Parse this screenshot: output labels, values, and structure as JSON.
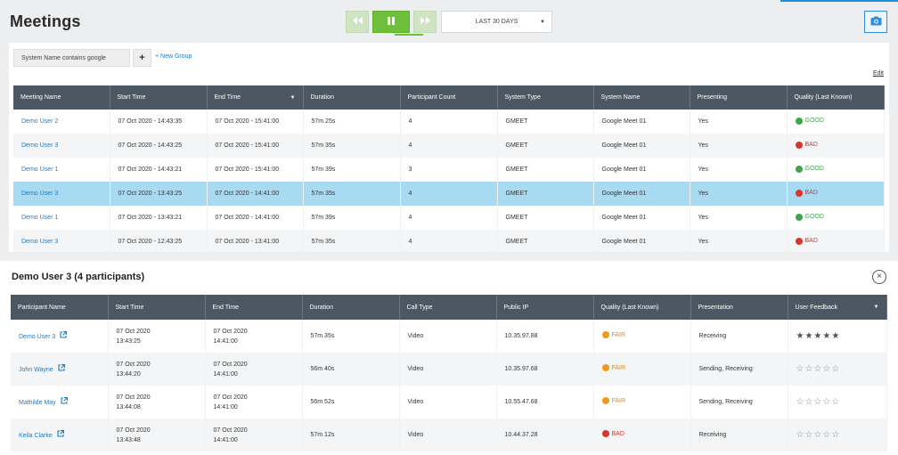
{
  "app": {
    "title": "Meetings"
  },
  "toolbar": {
    "rewind_icon": "rewind-icon",
    "pause_icon": "pause-icon",
    "forward_icon": "fast-forward-icon",
    "range_label": "LAST 30 DAYS",
    "camera_icon": "camera-icon"
  },
  "filters": {
    "chip_label": "System Name contains google",
    "add_label": "+",
    "new_group_label": "+ New Group",
    "edit_label": "Edit"
  },
  "meetings": {
    "columns": [
      "Meeting Name",
      "Start Time",
      "End Time",
      "Duration",
      "Participant Count",
      "System Type",
      "System Name",
      "Presenting",
      "Quality (Last Known)"
    ],
    "rows": [
      {
        "name": "Demo User 2",
        "start": "07 Oct 2020 - 14:43:35",
        "end": "07 Oct 2020 - 15:41:00",
        "duration": "57m 25s",
        "count": "4",
        "type": "GMEET",
        "system": "Google Meet 01",
        "presenting": "Yes",
        "quality": "GOOD",
        "selected": false
      },
      {
        "name": "Demo User 3",
        "start": "07 Oct 2020 - 14:43:25",
        "end": "07 Oct 2020 - 15:41:00",
        "duration": "57m 35s",
        "count": "4",
        "type": "GMEET",
        "system": "Google Meet 01",
        "presenting": "Yes",
        "quality": "BAD",
        "selected": false
      },
      {
        "name": "Demo User 1",
        "start": "07 Oct 2020 - 14:43:21",
        "end": "07 Oct 2020 - 15:41:00",
        "duration": "57m 39s",
        "count": "3",
        "type": "GMEET",
        "system": "Google Meet 01",
        "presenting": "Yes",
        "quality": "GOOD",
        "selected": false
      },
      {
        "name": "Demo User 3",
        "start": "07 Oct 2020 - 13:43:25",
        "end": "07 Oct 2020 - 14:41:00",
        "duration": "57m 35s",
        "count": "4",
        "type": "GMEET",
        "system": "Google Meet 01",
        "presenting": "Yes",
        "quality": "BAD",
        "selected": true
      },
      {
        "name": "Demo User 1",
        "start": "07 Oct 2020 - 13:43:21",
        "end": "07 Oct 2020 - 14:41:00",
        "duration": "57m 39s",
        "count": "4",
        "type": "GMEET",
        "system": "Google Meet 01",
        "presenting": "Yes",
        "quality": "GOOD",
        "selected": false
      },
      {
        "name": "Demo User 3",
        "start": "07 Oct 2020 - 12:43:25",
        "end": "07 Oct 2020 - 13:41:00",
        "duration": "57m 35s",
        "count": "4",
        "type": "GMEET",
        "system": "Google Meet 01",
        "presenting": "Yes",
        "quality": "BAD",
        "selected": false
      }
    ]
  },
  "participants": {
    "title": "Demo User 3 (4 participants)",
    "close_icon": "close-circle-icon",
    "columns": [
      "Participant Name",
      "Start Time",
      "End Time",
      "Duration",
      "Call Type",
      "Public IP",
      "Quality (Last Known)",
      "Presentation",
      "User Feedback"
    ],
    "rows": [
      {
        "name": "Demo User 3",
        "start_date": "07 Oct 2020",
        "start_time": "13:43:25",
        "end_date": "07 Oct 2020",
        "end_time": "14:41:00",
        "duration": "57m 35s",
        "call_type": "Video",
        "ip": "10.35.97.88",
        "quality": "FAIR",
        "presentation": "Receiving",
        "feedback_stars": 5
      },
      {
        "name": "John Wayne",
        "start_date": "07 Oct 2020",
        "start_time": "13:44:20",
        "end_date": "07 Oct 2020",
        "end_time": "14:41:00",
        "duration": "56m 40s",
        "call_type": "Video",
        "ip": "10.35.97.68",
        "quality": "FAIR",
        "presentation": "Sending, Receiving",
        "feedback_stars": 0
      },
      {
        "name": "Mathilde May",
        "start_date": "07 Oct 2020",
        "start_time": "13:44:08",
        "end_date": "07 Oct 2020",
        "end_time": "14:41:00",
        "duration": "56m 52s",
        "call_type": "Video",
        "ip": "10.55.47.68",
        "quality": "FAIR",
        "presentation": "Sending, Receiving",
        "feedback_stars": 0
      },
      {
        "name": "Keila Clarke",
        "start_date": "07 Oct 2020",
        "start_time": "13:43:48",
        "end_date": "07 Oct 2020",
        "end_time": "14:41:00",
        "duration": "57m 12s",
        "call_type": "Video",
        "ip": "10.44.37.28",
        "quality": "BAD",
        "presentation": "Receiving",
        "feedback_stars": 0
      }
    ]
  },
  "colors": {
    "accent": "#1f8fd8",
    "good": "#3ea54b",
    "bad": "#d9352f",
    "fair": "#ef9a1c",
    "play": "#6fbf3c",
    "header": "#4b5863",
    "selected_row": "#a8daf2"
  }
}
